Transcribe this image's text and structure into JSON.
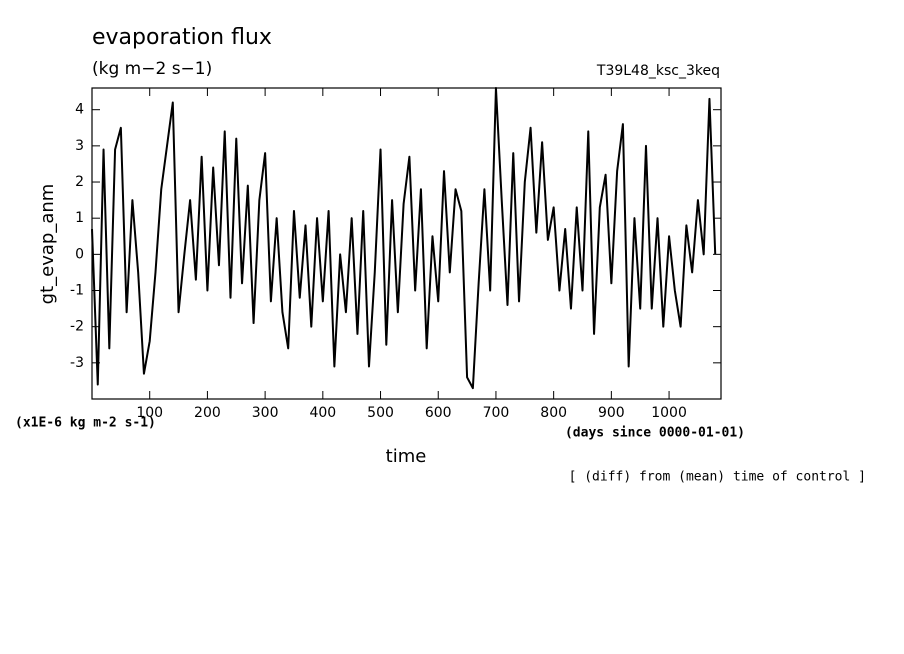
{
  "chart_data": {
    "type": "line",
    "title": "evaporation flux",
    "subtitle": "(kg m−2 s−1)",
    "run_label": "T39L48_ksc_3keq",
    "ylabel": "gt_evap_anm",
    "xlabel": "time",
    "y_unit_note": "(x1E-6 kg m-2 s-1)",
    "x_unit_note": "(days since 0000-01-01)",
    "note": "[ (diff) from (mean) time of control ]",
    "x": [
      0,
      10,
      20,
      30,
      40,
      50,
      60,
      70,
      80,
      90,
      100,
      110,
      120,
      130,
      140,
      150,
      160,
      170,
      180,
      190,
      200,
      210,
      220,
      230,
      240,
      250,
      260,
      270,
      280,
      290,
      300,
      310,
      320,
      330,
      340,
      350,
      360,
      370,
      380,
      390,
      400,
      410,
      420,
      430,
      440,
      450,
      460,
      470,
      480,
      490,
      500,
      510,
      520,
      530,
      540,
      550,
      560,
      570,
      580,
      590,
      600,
      610,
      620,
      630,
      640,
      650,
      660,
      670,
      680,
      690,
      700,
      710,
      720,
      730,
      740,
      750,
      760,
      770,
      780,
      790,
      800,
      810,
      820,
      830,
      840,
      850,
      860,
      870,
      880,
      890,
      900,
      910,
      920,
      930,
      940,
      950,
      960,
      970,
      980,
      990,
      1000,
      1010,
      1020,
      1030,
      1040,
      1050,
      1060,
      1070,
      1080
    ],
    "series": [
      {
        "name": "gt_evap_anm",
        "color": "#000000",
        "values": [
          0.7,
          -3.6,
          2.9,
          -2.6,
          2.9,
          3.5,
          -1.6,
          1.5,
          -0.5,
          -3.3,
          -2.4,
          -0.5,
          1.8,
          3.0,
          4.2,
          -1.6,
          0.0,
          1.5,
          -0.7,
          2.7,
          -1.0,
          2.4,
          -0.3,
          3.4,
          -1.2,
          3.2,
          -0.8,
          1.9,
          -1.9,
          1.5,
          2.8,
          -1.3,
          1.0,
          -1.6,
          -2.6,
          1.2,
          -1.2,
          0.8,
          -2.0,
          1.0,
          -1.3,
          1.2,
          -3.1,
          0.0,
          -1.6,
          1.0,
          -2.2,
          1.2,
          -3.1,
          -0.5,
          2.9,
          -2.5,
          1.5,
          -1.6,
          1.4,
          2.7,
          -1.0,
          1.8,
          -2.6,
          0.5,
          -1.3,
          2.3,
          -0.5,
          1.8,
          1.2,
          -3.4,
          -3.7,
          -0.8,
          1.8,
          -1.0,
          4.6,
          1.5,
          -1.4,
          2.8,
          -1.3,
          2.0,
          3.5,
          0.6,
          3.1,
          0.4,
          1.3,
          -1.0,
          0.7,
          -1.5,
          1.3,
          -1.0,
          3.4,
          -2.2,
          1.3,
          2.2,
          -0.8,
          2.3,
          3.6,
          -3.1,
          1.0,
          -1.5,
          3.0,
          -1.5,
          1.0,
          -2.0,
          0.5,
          -1.0,
          -2.0,
          0.8,
          -0.5,
          1.5,
          0.0,
          4.3,
          0.0
        ]
      }
    ],
    "xlim": [
      0,
      1090
    ],
    "ylim": [
      -4,
      4.6
    ],
    "xticks": [
      100,
      200,
      300,
      400,
      500,
      600,
      700,
      800,
      900,
      1000
    ],
    "yticks": [
      -3,
      -2,
      -1,
      0,
      1,
      2,
      3,
      4
    ]
  }
}
